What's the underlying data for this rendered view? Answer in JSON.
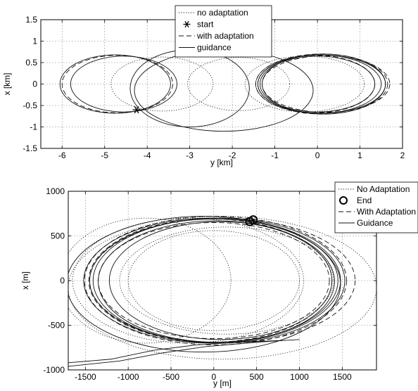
{
  "chart_data": [
    {
      "type": "line",
      "xlabel": "y [km]",
      "ylabel": "x [km]",
      "xlim": [
        -6.5,
        2
      ],
      "ylim": [
        -1.5,
        1.5
      ],
      "xticks": [
        -6,
        -5,
        -4,
        -3,
        -2,
        -1,
        0,
        1,
        2
      ],
      "yticks": [
        -1.5,
        -1,
        -0.5,
        0,
        0.5,
        1,
        1.5
      ],
      "xtick_labels": [
        "-6",
        "-5",
        "-4",
        "-3",
        "-2",
        "-1",
        "0",
        "1",
        "2"
      ],
      "ytick_labels": [
        "-1.5",
        "-1",
        "-0.5",
        "0",
        "0.5",
        "1",
        "1.5"
      ],
      "grid": true,
      "legend_position": "top-center",
      "legend": [
        {
          "label": "no adaptation",
          "style": "dotted"
        },
        {
          "label": "start",
          "style": "asterisk-marker"
        },
        {
          "label": "with adaptation",
          "style": "dashed"
        },
        {
          "label": "guidance",
          "style": "solid"
        }
      ],
      "start_point": {
        "y": -4.25,
        "x": -0.6
      },
      "ellipses": [
        {
          "series": "guidance",
          "cy": -4.75,
          "cx": 0.0,
          "ry": 1.3,
          "rx": 0.68
        },
        {
          "series": "guidance",
          "cy": -4.55,
          "cx": 0.0,
          "ry": 1.25,
          "rx": 0.65
        },
        {
          "series": "with adaptation",
          "cy": -4.7,
          "cx": 0.0,
          "ry": 1.3,
          "rx": 0.67
        },
        {
          "series": "no adaptation",
          "cy": -3.65,
          "cx": 0.0,
          "ry": 1.2,
          "rx": 0.63
        },
        {
          "series": "no adaptation",
          "cy": -1.85,
          "cx": 0.0,
          "ry": 1.2,
          "rx": 0.62
        },
        {
          "series": "no adaptation",
          "cy": -0.3,
          "cx": 0.0,
          "ry": 1.4,
          "rx": 0.65
        },
        {
          "series": "guidance",
          "cy": -3.0,
          "cx": -0.1,
          "ry": 1.4,
          "rx": 0.9
        },
        {
          "series": "guidance",
          "cy": -2.2,
          "cx": -0.15,
          "ry": 2.1,
          "rx": 0.95
        },
        {
          "series": "guidance",
          "cy": 0.05,
          "cx": 0.0,
          "ry": 1.45,
          "rx": 0.68
        },
        {
          "series": "guidance",
          "cy": 0.1,
          "cx": 0.0,
          "ry": 1.5,
          "rx": 0.68
        },
        {
          "series": "guidance",
          "cy": 0.0,
          "cx": 0.0,
          "ry": 1.35,
          "rx": 0.65
        },
        {
          "series": "guidance",
          "cy": 0.15,
          "cx": 0.0,
          "ry": 1.45,
          "rx": 0.7
        },
        {
          "series": "with adaptation",
          "cy": 0.1,
          "cx": 0.0,
          "ry": 1.55,
          "rx": 0.7
        },
        {
          "series": "with adaptation",
          "cy": -0.05,
          "cx": 0.0,
          "ry": 1.4,
          "rx": 0.67
        },
        {
          "series": "with adaptation",
          "cy": 0.2,
          "cx": 0.0,
          "ry": 1.5,
          "rx": 0.66
        }
      ]
    },
    {
      "type": "line",
      "xlabel": "y [m]",
      "ylabel": "x [m]",
      "xlim": [
        -1700,
        1900
      ],
      "ylim": [
        -1000,
        1000
      ],
      "xticks": [
        -1500,
        -1000,
        -500,
        0,
        500,
        1000,
        1500
      ],
      "yticks": [
        -1000,
        -500,
        0,
        500,
        1000
      ],
      "xtick_labels": [
        "-1500",
        "-1000",
        "-500",
        "0",
        "500",
        "1000",
        "1500"
      ],
      "ytick_labels": [
        "-1000",
        "-500",
        "0",
        "500",
        "1000"
      ],
      "grid": true,
      "legend_position": "top-right",
      "legend": [
        {
          "label": "No Adaptation",
          "style": "dotted"
        },
        {
          "label": "End",
          "style": "circle-marker"
        },
        {
          "label": "With Adaptation",
          "style": "dashed"
        },
        {
          "label": "Guidance",
          "style": "solid"
        }
      ],
      "end_points": [
        {
          "y": 460,
          "x": 680
        },
        {
          "y": 420,
          "x": 660
        }
      ],
      "ellipses": [
        {
          "series": "guidance",
          "cy": 0,
          "cx": 0,
          "ry": 1450,
          "rx": 690
        },
        {
          "series": "guidance",
          "cy": -20,
          "cx": 0,
          "ry": 1500,
          "rx": 700
        },
        {
          "series": "guidance",
          "cy": 30,
          "cx": -10,
          "ry": 1380,
          "rx": 680
        },
        {
          "series": "guidance",
          "cy": 60,
          "cx": 0,
          "ry": 1470,
          "rx": 700
        },
        {
          "series": "guidance",
          "cy": -120,
          "cx": -40,
          "ry": 1600,
          "rx": 760
        },
        {
          "series": "guidance",
          "cy": 80,
          "cx": 0,
          "ry": 1300,
          "rx": 660
        },
        {
          "series": "with adaptation",
          "cy": 20,
          "cx": 0,
          "ry": 1530,
          "rx": 720
        },
        {
          "series": "with adaptation",
          "cy": 100,
          "cx": 0,
          "ry": 1550,
          "rx": 700
        },
        {
          "series": "with adaptation",
          "cy": -40,
          "cx": 0,
          "ry": 1420,
          "rx": 690
        },
        {
          "series": "with adaptation",
          "cy": 0,
          "cx": 0,
          "ry": 1350,
          "rx": 650
        },
        {
          "series": "no adaptation",
          "cy": -300,
          "cx": 0,
          "ry": 1350,
          "rx": 700
        },
        {
          "series": "no adaptation",
          "cy": -800,
          "cx": 0,
          "ry": 1000,
          "rx": 700
        },
        {
          "series": "no adaptation",
          "cy": 0,
          "cx": 0,
          "ry": 1000,
          "rx": 560
        },
        {
          "series": "no adaptation",
          "cy": 150,
          "cx": 0,
          "ry": 1250,
          "rx": 600
        },
        {
          "series": "no adaptation",
          "cy": 100,
          "cx": -80,
          "ry": 1800,
          "rx": 800
        }
      ],
      "spiral_in": [
        {
          "series": "guidance",
          "points": [
            [
              -1700,
              -920
            ],
            [
              -1200,
              -880
            ],
            [
              -700,
              -780
            ],
            [
              -200,
              -720
            ],
            [
              300,
              -690
            ],
            [
              800,
              -670
            ]
          ]
        },
        {
          "series": "guidance",
          "points": [
            [
              -1700,
              -960
            ],
            [
              -1100,
              -900
            ],
            [
              -600,
              -810
            ],
            [
              -100,
              -740
            ],
            [
              500,
              -690
            ],
            [
              1000,
              -660
            ]
          ]
        }
      ]
    }
  ]
}
